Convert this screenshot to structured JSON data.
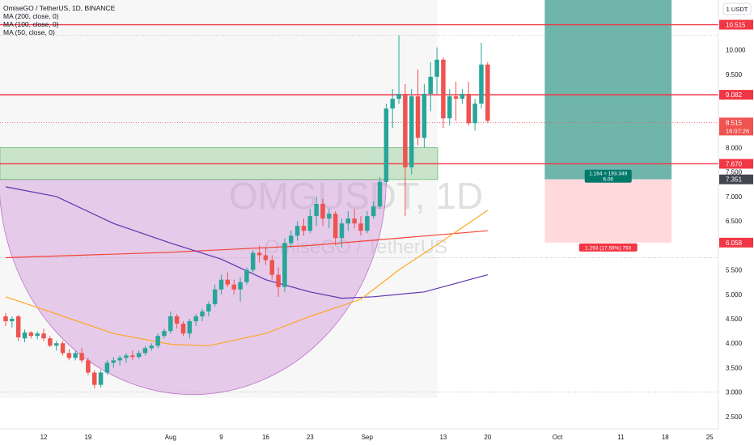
{
  "legend": {
    "title": "OmiseGO / TetherUS, 1D, BINANCE",
    "ma200": "MA (200, close, 0)",
    "ma100": "MA (100, close, 0)",
    "ma50": "MA (50, close, 0)"
  },
  "watermark": {
    "symbol": "OMGUSDT, 1D",
    "name": "OmiseGO / TetherUS"
  },
  "currency": "USDT",
  "colors": {
    "up": "#26a69a",
    "down": "#ef5350",
    "ma200": "#f44336",
    "ma100": "#5e35b1",
    "ma50": "#ffa726",
    "resistance": "#f23645",
    "zone": "#a5d6a7",
    "cup": "#ce93d8",
    "profit": "#6fb5ab",
    "loss": "#ffd9dc"
  },
  "chart_data": {
    "type": "candlestick",
    "y_axis": {
      "ylim": [
        2.25,
        11.02
      ],
      "ticks": [
        "2.500",
        "3.000",
        "3.500",
        "4.000",
        "4.500",
        "5.000",
        "5.500",
        "6.500",
        "7.000",
        "7.500",
        "8.000",
        "9.500",
        "10.000"
      ],
      "tick_values": [
        2.5,
        3.0,
        3.5,
        4.0,
        4.5,
        5.0,
        5.5,
        6.5,
        7.0,
        7.5,
        8.0,
        9.5,
        10.0
      ]
    },
    "x_axis": {
      "labels": [
        "12",
        "19",
        "Aug",
        "9",
        "16",
        "23",
        "Sep",
        "13",
        "20",
        "Oct",
        "11",
        "18",
        "25"
      ],
      "dates": [
        "2021-07-12",
        "2021-07-19",
        "2021-08-01",
        "2021-08-09",
        "2021-08-16",
        "2021-08-23",
        "2021-09-01",
        "2021-09-13",
        "2021-09-20",
        "2021-10-01",
        "2021-10-11",
        "2021-10-18",
        "2021-10-25"
      ],
      "xlim": [
        "2021-07-06",
        "2021-10-26"
      ]
    },
    "candles": [
      {
        "date": "2021-07-06",
        "o": 4.55,
        "h": 4.62,
        "l": 4.35,
        "c": 4.45
      },
      {
        "date": "2021-07-07",
        "o": 4.45,
        "h": 4.55,
        "l": 4.32,
        "c": 4.5
      },
      {
        "date": "2021-07-08",
        "o": 4.55,
        "h": 4.58,
        "l": 4.05,
        "c": 4.12
      },
      {
        "date": "2021-07-09",
        "o": 4.1,
        "h": 4.28,
        "l": 4.02,
        "c": 4.22
      },
      {
        "date": "2021-07-10",
        "o": 4.22,
        "h": 4.25,
        "l": 4.1,
        "c": 4.15
      },
      {
        "date": "2021-07-11",
        "o": 4.15,
        "h": 4.24,
        "l": 4.08,
        "c": 4.2
      },
      {
        "date": "2021-07-12",
        "o": 4.2,
        "h": 4.3,
        "l": 4.05,
        "c": 4.1
      },
      {
        "date": "2021-07-13",
        "o": 4.1,
        "h": 4.15,
        "l": 3.92,
        "c": 3.95
      },
      {
        "date": "2021-07-14",
        "o": 3.95,
        "h": 4.05,
        "l": 3.85,
        "c": 4.0
      },
      {
        "date": "2021-07-15",
        "o": 4.0,
        "h": 4.05,
        "l": 3.75,
        "c": 3.8
      },
      {
        "date": "2021-07-16",
        "o": 3.8,
        "h": 3.88,
        "l": 3.65,
        "c": 3.7
      },
      {
        "date": "2021-07-17",
        "o": 3.7,
        "h": 3.85,
        "l": 3.65,
        "c": 3.8
      },
      {
        "date": "2021-07-18",
        "o": 3.8,
        "h": 3.9,
        "l": 3.6,
        "c": 3.65
      },
      {
        "date": "2021-07-19",
        "o": 3.65,
        "h": 3.7,
        "l": 3.35,
        "c": 3.4
      },
      {
        "date": "2021-07-20",
        "o": 3.4,
        "h": 3.45,
        "l": 3.08,
        "c": 3.15
      },
      {
        "date": "2021-07-21",
        "o": 3.15,
        "h": 3.45,
        "l": 3.1,
        "c": 3.4
      },
      {
        "date": "2021-07-22",
        "o": 3.4,
        "h": 3.65,
        "l": 3.35,
        "c": 3.6
      },
      {
        "date": "2021-07-23",
        "o": 3.6,
        "h": 3.72,
        "l": 3.5,
        "c": 3.65
      },
      {
        "date": "2021-07-24",
        "o": 3.65,
        "h": 3.75,
        "l": 3.55,
        "c": 3.7
      },
      {
        "date": "2021-07-25",
        "o": 3.7,
        "h": 3.8,
        "l": 3.6,
        "c": 3.75
      },
      {
        "date": "2021-07-26",
        "o": 3.75,
        "h": 3.85,
        "l": 3.65,
        "c": 3.72
      },
      {
        "date": "2021-07-27",
        "o": 3.72,
        "h": 3.85,
        "l": 3.68,
        "c": 3.8
      },
      {
        "date": "2021-07-28",
        "o": 3.8,
        "h": 3.95,
        "l": 3.75,
        "c": 3.9
      },
      {
        "date": "2021-07-29",
        "o": 3.9,
        "h": 4.0,
        "l": 3.85,
        "c": 3.95
      },
      {
        "date": "2021-07-30",
        "o": 3.95,
        "h": 4.2,
        "l": 3.9,
        "c": 4.15
      },
      {
        "date": "2021-07-31",
        "o": 4.15,
        "h": 4.3,
        "l": 4.1,
        "c": 4.25
      },
      {
        "date": "2021-08-01",
        "o": 4.25,
        "h": 4.65,
        "l": 4.2,
        "c": 4.55
      },
      {
        "date": "2021-08-02",
        "o": 4.55,
        "h": 4.6,
        "l": 4.3,
        "c": 4.4
      },
      {
        "date": "2021-08-03",
        "o": 4.4,
        "h": 4.45,
        "l": 4.15,
        "c": 4.2
      },
      {
        "date": "2021-08-04",
        "o": 4.2,
        "h": 4.5,
        "l": 4.1,
        "c": 4.45
      },
      {
        "date": "2021-08-05",
        "o": 4.45,
        "h": 4.6,
        "l": 4.35,
        "c": 4.55
      },
      {
        "date": "2021-08-06",
        "o": 4.55,
        "h": 4.7,
        "l": 4.45,
        "c": 4.65
      },
      {
        "date": "2021-08-07",
        "o": 4.65,
        "h": 4.85,
        "l": 4.55,
        "c": 4.8
      },
      {
        "date": "2021-08-08",
        "o": 4.8,
        "h": 5.2,
        "l": 4.75,
        "c": 5.1
      },
      {
        "date": "2021-08-09",
        "o": 5.1,
        "h": 5.4,
        "l": 5.0,
        "c": 5.3
      },
      {
        "date": "2021-08-10",
        "o": 5.3,
        "h": 5.45,
        "l": 5.15,
        "c": 5.2
      },
      {
        "date": "2021-08-11",
        "o": 5.2,
        "h": 5.3,
        "l": 5.0,
        "c": 5.1
      },
      {
        "date": "2021-08-12",
        "o": 5.1,
        "h": 5.35,
        "l": 4.85,
        "c": 5.25
      },
      {
        "date": "2021-08-13",
        "o": 5.25,
        "h": 5.55,
        "l": 5.2,
        "c": 5.5
      },
      {
        "date": "2021-08-14",
        "o": 5.5,
        "h": 5.9,
        "l": 5.45,
        "c": 5.85
      },
      {
        "date": "2021-08-15",
        "o": 5.85,
        "h": 6.0,
        "l": 5.65,
        "c": 5.8
      },
      {
        "date": "2021-08-16",
        "o": 5.8,
        "h": 5.95,
        "l": 5.6,
        "c": 5.7
      },
      {
        "date": "2021-08-17",
        "o": 5.7,
        "h": 5.8,
        "l": 5.3,
        "c": 5.4
      },
      {
        "date": "2021-08-18",
        "o": 5.4,
        "h": 5.55,
        "l": 4.95,
        "c": 5.15
      },
      {
        "date": "2021-08-19",
        "o": 5.15,
        "h": 6.15,
        "l": 5.05,
        "c": 6.05
      },
      {
        "date": "2021-08-20",
        "o": 6.05,
        "h": 6.3,
        "l": 5.95,
        "c": 6.2
      },
      {
        "date": "2021-08-21",
        "o": 6.2,
        "h": 6.5,
        "l": 6.1,
        "c": 6.4
      },
      {
        "date": "2021-08-22",
        "o": 6.4,
        "h": 6.55,
        "l": 6.2,
        "c": 6.3
      },
      {
        "date": "2021-08-23",
        "o": 6.3,
        "h": 6.75,
        "l": 6.25,
        "c": 6.6
      },
      {
        "date": "2021-08-24",
        "o": 6.6,
        "h": 7.0,
        "l": 6.4,
        "c": 6.85
      },
      {
        "date": "2021-08-25",
        "o": 6.85,
        "h": 6.95,
        "l": 6.4,
        "c": 6.55
      },
      {
        "date": "2021-08-26",
        "o": 6.55,
        "h": 6.75,
        "l": 6.35,
        "c": 6.65
      },
      {
        "date": "2021-08-27",
        "o": 6.65,
        "h": 6.7,
        "l": 6.0,
        "c": 6.15
      },
      {
        "date": "2021-08-28",
        "o": 6.15,
        "h": 6.55,
        "l": 5.95,
        "c": 6.45
      },
      {
        "date": "2021-08-29",
        "o": 6.45,
        "h": 6.7,
        "l": 6.3,
        "c": 6.55
      },
      {
        "date": "2021-08-30",
        "o": 6.55,
        "h": 6.75,
        "l": 6.35,
        "c": 6.45
      },
      {
        "date": "2021-08-31",
        "o": 6.45,
        "h": 6.6,
        "l": 6.2,
        "c": 6.3
      },
      {
        "date": "2021-09-01",
        "o": 6.3,
        "h": 6.7,
        "l": 6.25,
        "c": 6.6
      },
      {
        "date": "2021-09-02",
        "o": 6.6,
        "h": 6.9,
        "l": 6.55,
        "c": 6.8
      },
      {
        "date": "2021-09-03",
        "o": 6.8,
        "h": 7.4,
        "l": 6.75,
        "c": 7.3
      },
      {
        "date": "2021-09-04",
        "o": 7.3,
        "h": 8.9,
        "l": 7.25,
        "c": 8.8
      },
      {
        "date": "2021-09-05",
        "o": 8.8,
        "h": 9.2,
        "l": 8.4,
        "c": 9.0
      },
      {
        "date": "2021-09-06",
        "o": 9.0,
        "h": 10.3,
        "l": 8.9,
        "c": 9.1
      },
      {
        "date": "2021-09-07",
        "o": 9.1,
        "h": 9.3,
        "l": 6.6,
        "c": 7.6
      },
      {
        "date": "2021-09-08",
        "o": 7.6,
        "h": 9.2,
        "l": 7.45,
        "c": 9.05
      },
      {
        "date": "2021-09-09",
        "o": 9.05,
        "h": 9.6,
        "l": 8.05,
        "c": 8.2
      },
      {
        "date": "2021-09-10",
        "o": 8.2,
        "h": 9.3,
        "l": 8.0,
        "c": 9.1
      },
      {
        "date": "2021-09-11",
        "o": 9.1,
        "h": 9.75,
        "l": 8.75,
        "c": 9.45
      },
      {
        "date": "2021-09-12",
        "o": 9.45,
        "h": 10.05,
        "l": 9.1,
        "c": 9.8
      },
      {
        "date": "2021-09-13",
        "o": 9.8,
        "h": 9.85,
        "l": 8.4,
        "c": 8.6
      },
      {
        "date": "2021-09-14",
        "o": 8.6,
        "h": 9.2,
        "l": 8.45,
        "c": 9.05
      },
      {
        "date": "2021-09-15",
        "o": 9.05,
        "h": 9.35,
        "l": 8.55,
        "c": 9.0
      },
      {
        "date": "2021-09-16",
        "o": 9.0,
        "h": 9.2,
        "l": 8.9,
        "c": 9.1
      },
      {
        "date": "2021-09-17",
        "o": 9.1,
        "h": 9.35,
        "l": 8.45,
        "c": 8.5
      },
      {
        "date": "2021-09-18",
        "o": 8.5,
        "h": 9.0,
        "l": 8.35,
        "c": 8.9
      },
      {
        "date": "2021-09-19",
        "o": 8.9,
        "h": 10.15,
        "l": 8.8,
        "c": 9.7
      },
      {
        "date": "2021-09-20",
        "o": 9.7,
        "h": 9.75,
        "l": 8.5,
        "c": 8.55
      }
    ],
    "moving_averages": [
      {
        "name": "MA (200, close, 0)",
        "color": "#f44336",
        "points": [
          [
            "2021-07-06",
            5.75
          ],
          [
            "2021-08-01",
            5.86
          ],
          [
            "2021-08-23",
            6.0
          ],
          [
            "2021-09-20",
            6.3
          ]
        ]
      },
      {
        "name": "MA (100, close, 0)",
        "color": "#5e35b1",
        "points": [
          [
            "2021-07-06",
            7.2
          ],
          [
            "2021-07-14",
            7.0
          ],
          [
            "2021-07-23",
            6.45
          ],
          [
            "2021-08-01",
            6.05
          ],
          [
            "2021-08-09",
            5.72
          ],
          [
            "2021-08-16",
            5.3
          ],
          [
            "2021-08-23",
            5.05
          ],
          [
            "2021-08-28",
            4.92
          ],
          [
            "2021-09-02",
            4.95
          ],
          [
            "2021-09-10",
            5.05
          ],
          [
            "2021-09-20",
            5.4
          ]
        ]
      },
      {
        "name": "MA (50, close, 0)",
        "color": "#ffa726",
        "points": [
          [
            "2021-07-06",
            4.95
          ],
          [
            "2021-07-14",
            4.6
          ],
          [
            "2021-07-23",
            4.2
          ],
          [
            "2021-08-01",
            3.98
          ],
          [
            "2021-08-07",
            3.95
          ],
          [
            "2021-08-16",
            4.2
          ],
          [
            "2021-08-23",
            4.55
          ],
          [
            "2021-08-31",
            4.9
          ],
          [
            "2021-09-06",
            5.5
          ],
          [
            "2021-09-13",
            6.1
          ],
          [
            "2021-09-20",
            6.72
          ]
        ]
      }
    ],
    "horizontal_lines": [
      {
        "value": 10.515,
        "label": "10.515"
      },
      {
        "value": 9.082,
        "label": "9.082"
      },
      {
        "value": 7.67,
        "label": "7.670"
      }
    ],
    "support_zone": {
      "from": "2021-07-06",
      "to": "2021-09-13",
      "low": 7.35,
      "high": 8.0
    },
    "cup_pattern": {
      "from": "2021-07-06",
      "to": "2021-09-04",
      "top": 7.35,
      "bottom": 2.95
    },
    "position": {
      "from": "2021-09-29",
      "to": "2021-10-19",
      "entry": 7.351,
      "target": 11.02,
      "stop": 6.058,
      "profit_label": "1.164 ≈ 193.349",
      "profit_sub": "6.06",
      "loss_label": "1.293 (17.59%) 750"
    },
    "current_price": {
      "value": 8.515,
      "label": "8.515",
      "countdown": "16:07:26"
    },
    "entry_label": "7.351",
    "stop_label": "6.058"
  }
}
